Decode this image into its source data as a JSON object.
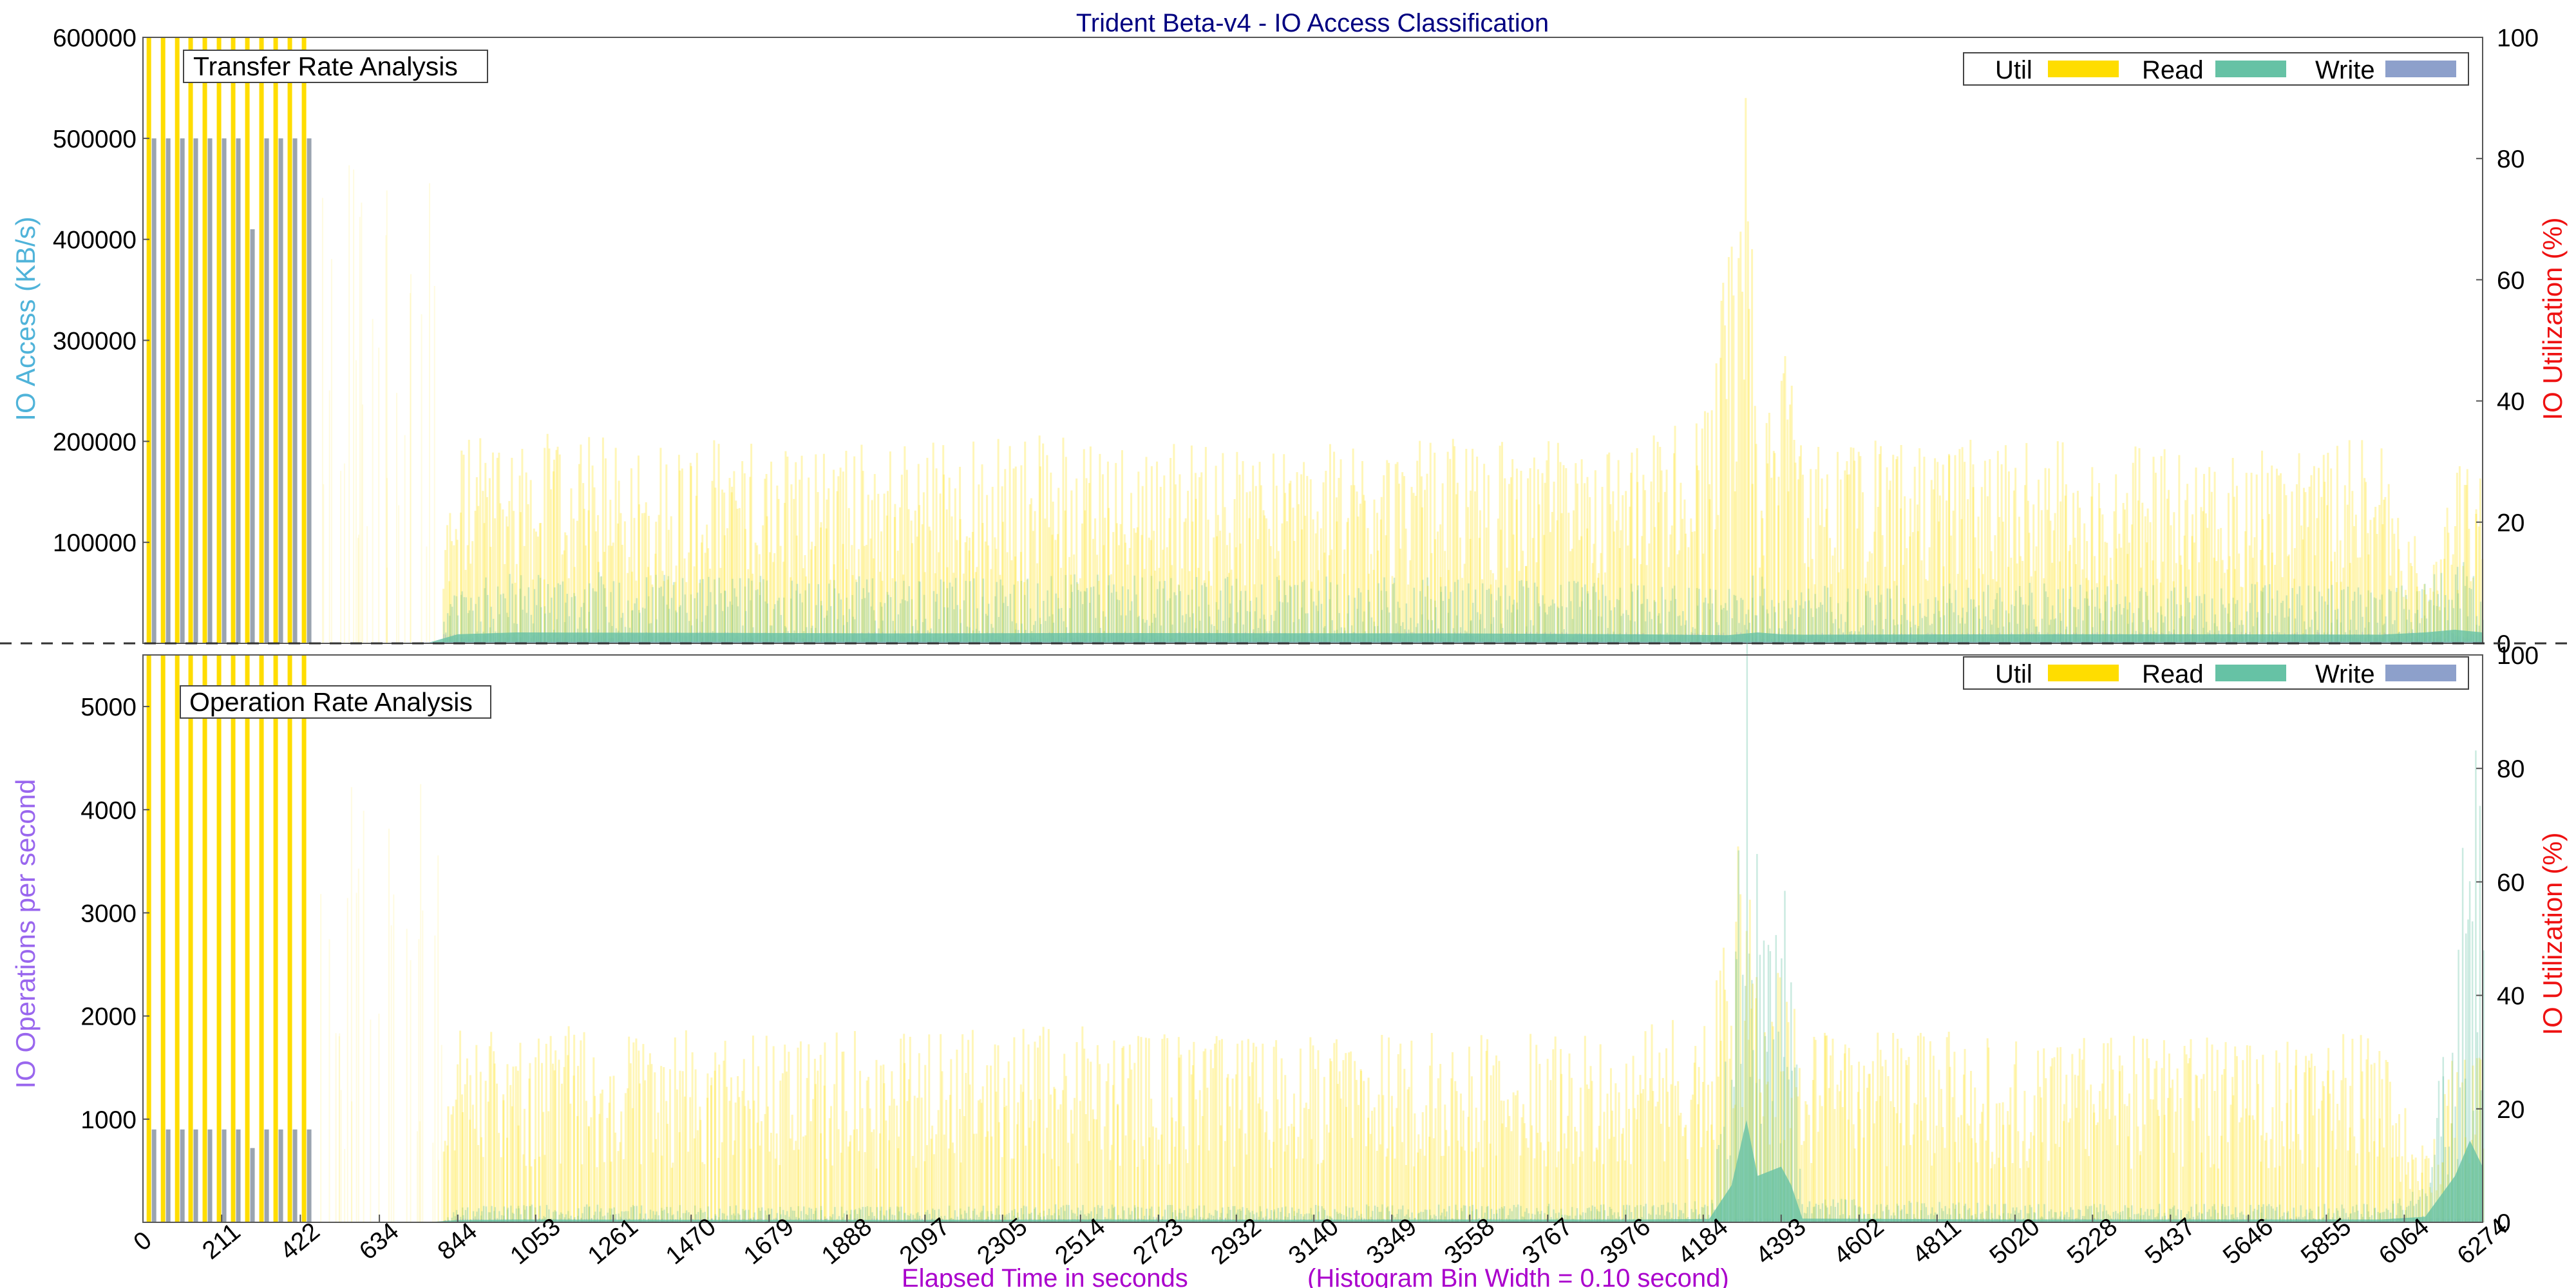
{
  "title": "Trident Beta-v4 - IO Access Classification",
  "xlabel": "Elapsed Time in seconds",
  "xlabel_note": "(Histogram Bin Width = 0.10 second)",
  "colors": {
    "util": "#ffdd00",
    "read": "#66c2a5",
    "write": "#8da0cb",
    "title": "#000080",
    "left_label_top": "#4fb3d9",
    "left_label_bottom": "#9966ee",
    "right_label": "#ee1111",
    "xlabel": "#aa00cc"
  },
  "chart_data": [
    {
      "type": "area",
      "panel_title": "Transfer Rate Analysis",
      "ylabel": "IO Access (KB/s)",
      "y2label": "IO Utilization (%)",
      "ylim": [
        0,
        600000
      ],
      "y2lim": [
        0,
        100
      ],
      "yticks": [
        100000,
        200000,
        300000,
        400000,
        500000,
        600000
      ],
      "y2ticks": [
        0,
        20,
        40,
        60,
        80,
        100
      ],
      "xlim": [
        0,
        6274
      ],
      "legend": [
        "Util",
        "Read",
        "Write"
      ],
      "legend_position": "top-right",
      "early_bursts": {
        "x": [
          15,
          53,
          91,
          127,
          165,
          203,
          241,
          279,
          317,
          355,
          393,
          431
        ],
        "write": [
          500000,
          500000,
          500000,
          500000,
          500000,
          500000,
          500000,
          410000,
          500000,
          500000,
          500000,
          500000
        ],
        "util": [
          100,
          100,
          100,
          100,
          100,
          100,
          100,
          100,
          100,
          100,
          100,
          100
        ]
      },
      "series": [
        {
          "name": "Read",
          "x": [
            0,
            500,
            760,
            844,
            1000,
            1500,
            2000,
            2500,
            3000,
            3500,
            4000,
            4250,
            4330,
            4393,
            4450,
            5000,
            5500,
            6000,
            6120,
            6200,
            6274
          ],
          "values": [
            0,
            0,
            0,
            50000,
            60000,
            58000,
            55000,
            57000,
            56000,
            55000,
            50000,
            45000,
            60000,
            50000,
            48000,
            50000,
            50000,
            48000,
            60000,
            75000,
            60000
          ]
        },
        {
          "name": "Write",
          "x": [
            0,
            500,
            844,
            1500,
            2500,
            3500,
            4200,
            4330,
            4450,
            5500,
            6274
          ],
          "values": [
            0,
            0,
            8000,
            9000,
            8500,
            9000,
            8000,
            9000,
            8000,
            8500,
            9000
          ]
        },
        {
          "name": "Util",
          "x": [
            0,
            500,
            760,
            844,
            1000,
            1500,
            2000,
            2500,
            3000,
            3500,
            4000,
            4200,
            4300,
            4330,
            4393,
            4450,
            5000,
            5500,
            6000,
            6120,
            6200,
            6274
          ],
          "values": [
            0,
            0,
            0,
            28,
            28,
            27,
            27,
            28,
            26,
            27,
            27,
            32,
            80,
            35,
            40,
            27,
            27,
            26,
            27,
            10,
            25,
            25
          ]
        }
      ]
    },
    {
      "type": "area",
      "panel_title": "Operation Rate Analysis",
      "ylabel": "IO Operations per second",
      "y2label": "IO Utilization (%)",
      "ylim": [
        0,
        5500
      ],
      "y2lim": [
        0,
        100
      ],
      "yticks": [
        1000,
        2000,
        3000,
        4000,
        5000
      ],
      "y2ticks": [
        0,
        20,
        40,
        60,
        80,
        100
      ],
      "xlim": [
        0,
        6274
      ],
      "legend": [
        "Util",
        "Read",
        "Write"
      ],
      "legend_position": "top-right",
      "early_bursts": {
        "x": [
          15,
          53,
          91,
          127,
          165,
          203,
          241,
          279,
          317,
          355,
          393,
          431
        ],
        "write": [
          900,
          900,
          900,
          900,
          900,
          900,
          900,
          720,
          900,
          900,
          900,
          900
        ],
        "util": [
          100,
          100,
          100,
          100,
          100,
          100,
          100,
          100,
          100,
          100,
          100,
          100
        ]
      },
      "series": [
        {
          "name": "Read",
          "x": [
            0,
            500,
            760,
            844,
            1000,
            1500,
            2000,
            2500,
            3000,
            3500,
            4000,
            4200,
            4260,
            4300,
            4330,
            4393,
            4420,
            4450,
            5000,
            5500,
            6000,
            6120,
            6200,
            6240,
            6274
          ],
          "values": [
            0,
            0,
            0,
            120,
            150,
            140,
            130,
            150,
            140,
            150,
            150,
            180,
            2000,
            5500,
            2500,
            3000,
            2000,
            200,
            150,
            150,
            150,
            300,
            2500,
            4400,
            3000
          ]
        },
        {
          "name": "Write",
          "x": [
            0,
            500,
            844,
            1500,
            2500,
            3500,
            4200,
            4330,
            4450,
            5500,
            6274
          ],
          "values": [
            0,
            0,
            30,
            30,
            30,
            30,
            30,
            30,
            30,
            30,
            30
          ]
        },
        {
          "name": "Util",
          "x": [
            0,
            500,
            760,
            844,
            1000,
            1500,
            2000,
            2500,
            3000,
            3500,
            4000,
            4200,
            4300,
            4330,
            4393,
            4450,
            5000,
            5500,
            6000,
            6120,
            6200,
            6274
          ],
          "values": [
            0,
            0,
            0,
            28,
            28,
            27,
            27,
            28,
            26,
            27,
            27,
            32,
            60,
            35,
            40,
            27,
            27,
            26,
            27,
            10,
            25,
            25
          ]
        }
      ]
    }
  ],
  "xticks": [
    0,
    211,
    422,
    634,
    844,
    1053,
    1261,
    1470,
    1679,
    1888,
    2097,
    2305,
    2514,
    2723,
    2932,
    3140,
    3349,
    3558,
    3767,
    3976,
    4184,
    4393,
    4602,
    4811,
    5020,
    5228,
    5437,
    5646,
    5855,
    6064,
    6274
  ]
}
